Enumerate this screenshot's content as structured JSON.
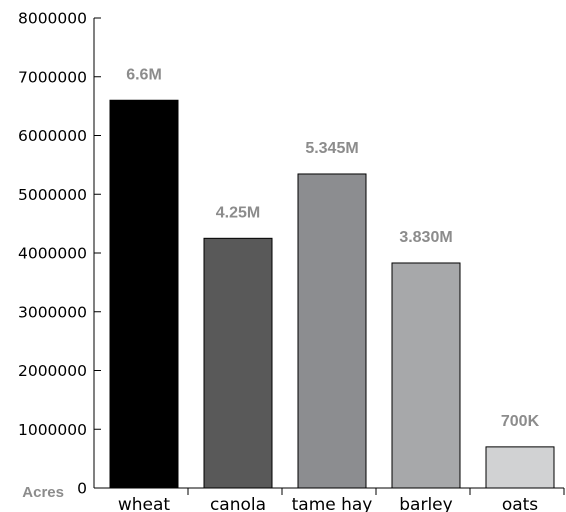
{
  "chart_data": {
    "type": "bar",
    "categories": [
      "wheat",
      "canola",
      "tame hay",
      "barley",
      "oats"
    ],
    "values": [
      6600000,
      4250000,
      5345000,
      3830000,
      700000
    ],
    "data_labels": [
      "6.6M",
      "4.25M",
      "5.345M",
      "3.830M",
      "700K"
    ],
    "bar_colors": [
      "#000000",
      "#595959",
      "#8c8d90",
      "#a7a8aa",
      "#d1d2d3"
    ],
    "ylabel": "Acres",
    "ylim": [
      0,
      8000000
    ],
    "yticks": [
      0,
      1000000,
      2000000,
      3000000,
      4000000,
      5000000,
      6000000,
      7000000,
      8000000
    ],
    "ytick_labels": [
      "0",
      "1000000",
      "2000000",
      "3000000",
      "4000000",
      "5000000",
      "6000000",
      "7000000",
      "8000000"
    ],
    "grid": false
  }
}
